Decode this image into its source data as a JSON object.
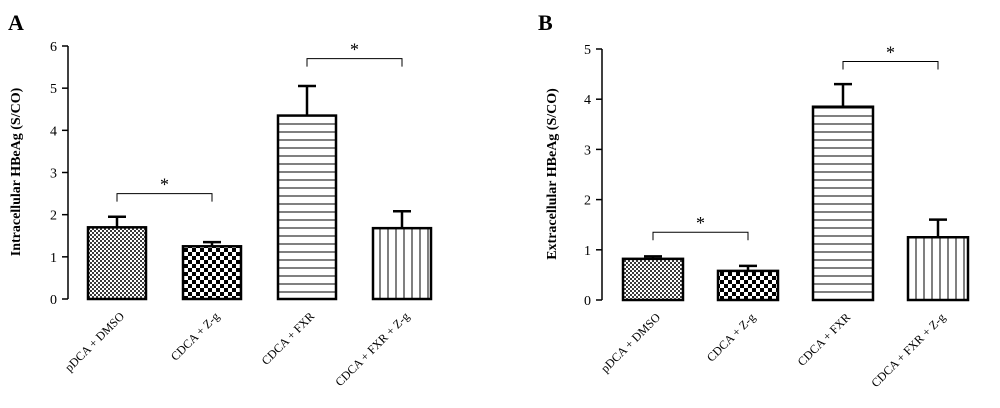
{
  "chart_data": [
    {
      "type": "bar",
      "panel_label": "A",
      "ylabel": "Intracellular HBeAg (S/CO)",
      "categories": [
        "pDCA + DMSO",
        "CDCA + Z-g",
        "CDCA + FXR",
        "CDCA + FXR + Z-g"
      ],
      "values": [
        1.7,
        1.25,
        4.35,
        1.68
      ],
      "errors": [
        0.25,
        0.1,
        0.7,
        0.4
      ],
      "patterns": [
        "fine-checker",
        "checker",
        "horizontal",
        "vertical"
      ],
      "ylim": [
        0,
        6
      ],
      "yticks": [
        "0",
        "1",
        "2",
        "3",
        "4",
        "5",
        "6"
      ],
      "significance": [
        {
          "from": 0,
          "to": 1,
          "label": "*",
          "level": 2.5
        },
        {
          "from": 2,
          "to": 3,
          "label": "*",
          "level": 5.7
        }
      ]
    },
    {
      "type": "bar",
      "panel_label": "B",
      "ylabel": "Extracellular HBeAg (S/CO)",
      "categories": [
        "pDCA + DMSO",
        "CDCA + Z-g",
        "CDCA + FXR",
        "CDCA + FXR + Z-g"
      ],
      "values": [
        0.82,
        0.58,
        3.85,
        1.25
      ],
      "errors": [
        0.05,
        0.1,
        0.45,
        0.35
      ],
      "patterns": [
        "fine-checker",
        "checker",
        "horizontal",
        "vertical"
      ],
      "ylim": [
        0,
        5
      ],
      "yticks": [
        "0",
        "1",
        "2",
        "3",
        "4",
        "5"
      ],
      "significance": [
        {
          "from": 0,
          "to": 1,
          "label": "*",
          "level": 1.35
        },
        {
          "from": 2,
          "to": 3,
          "label": "*",
          "level": 4.75
        }
      ]
    }
  ]
}
